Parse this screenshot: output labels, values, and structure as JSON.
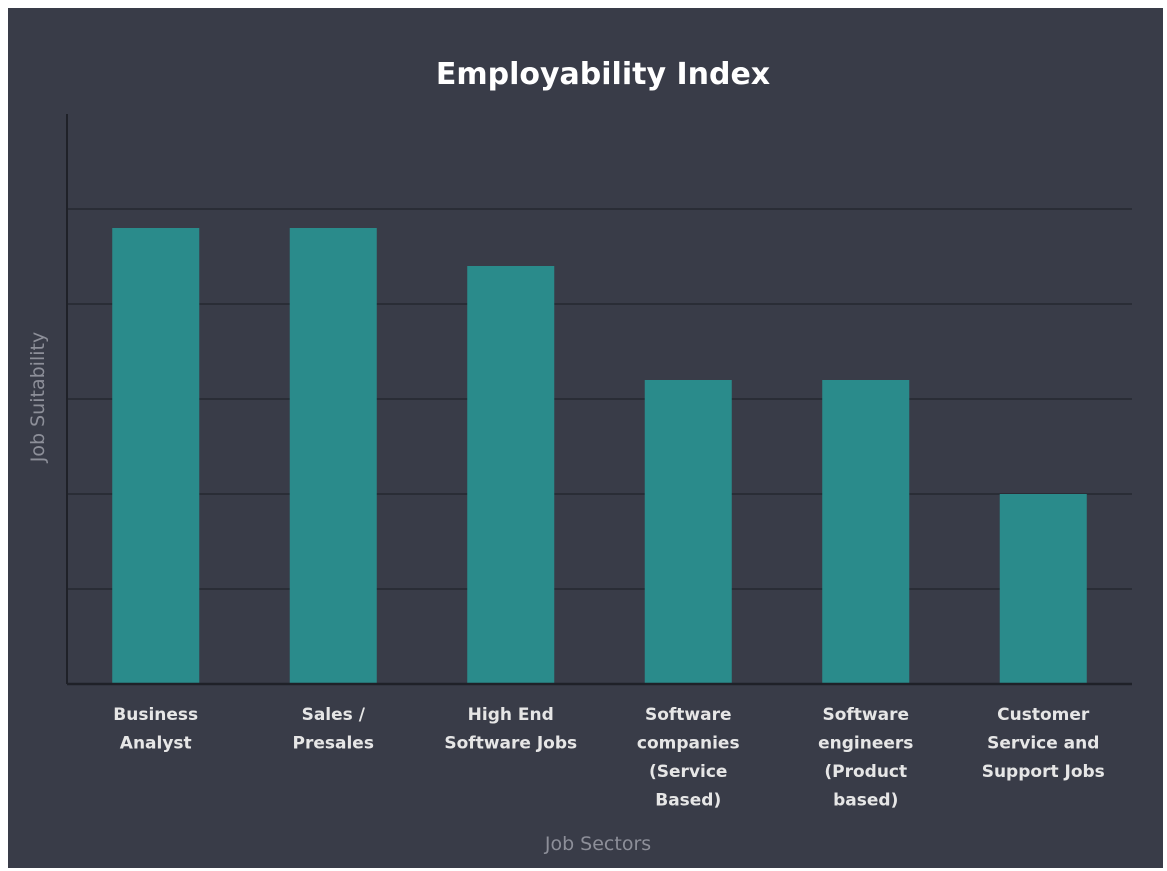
{
  "chart_data": {
    "type": "bar",
    "title": "Employability Index",
    "xlabel": "Job Sectors",
    "ylabel": "Job Suitability",
    "categories": [
      [
        "Business",
        "Analyst"
      ],
      [
        "Sales /",
        "Presales"
      ],
      [
        "High End",
        "Software Jobs"
      ],
      [
        "Software",
        "companies",
        "(Service",
        "Based)"
      ],
      [
        "Software",
        "engineers",
        "(Product",
        "based)"
      ],
      [
        "Customer",
        "Service and",
        "Support Jobs"
      ]
    ],
    "values": [
      4.8,
      4.8,
      4.4,
      3.2,
      3.2,
      2.0
    ],
    "ylim": [
      0,
      6
    ],
    "y_tick_labels_shown": false,
    "grid": true,
    "legend": "none",
    "colors": {
      "bar": "#2a8b8b",
      "background": "#393c48",
      "gridline": "#262830",
      "axis": "#1f2128"
    }
  }
}
